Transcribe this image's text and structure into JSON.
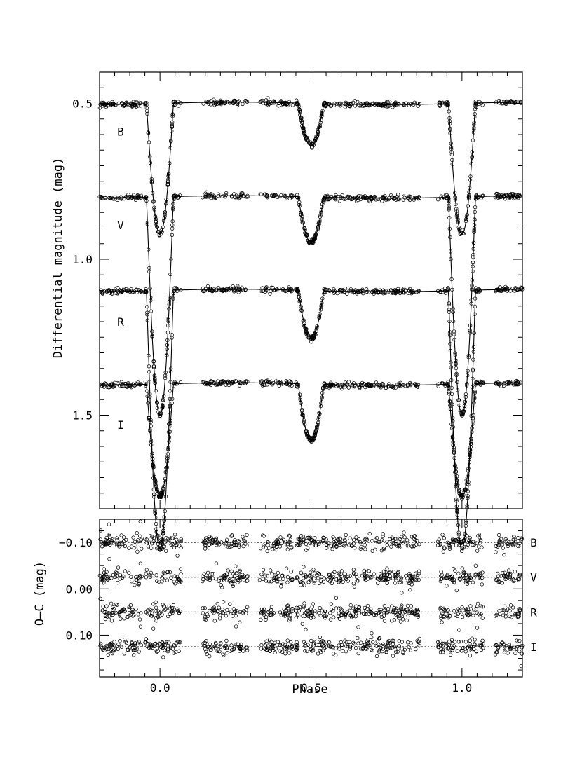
{
  "chart_data": [
    {
      "type": "scatter",
      "panel": "light-curve",
      "ylabel": "Differential magnitude (mag)",
      "ylim": [
        1.8,
        0.4
      ],
      "y_inverted": true,
      "xlim": [
        -0.2,
        1.2
      ],
      "yticks": [
        {
          "v": 0.5,
          "t": "0.5"
        },
        {
          "v": 1.0,
          "t": "1.0"
        },
        {
          "v": 1.5,
          "t": "1.5"
        }
      ],
      "x_minor_step": 0.05,
      "y_minor_step": 0.05,
      "eclipse": {
        "primary_phase": 0.0,
        "secondary_phase": 0.5,
        "half_width_primary": 0.045,
        "half_width_secondary": 0.043
      },
      "series": [
        {
          "name": "B",
          "label_y": 0.59,
          "baseline": 0.5,
          "primary_depth": 0.42,
          "secondary_depth": 0.135,
          "scatter": 0.004
        },
        {
          "name": "V",
          "label_y": 0.89,
          "baseline": 0.8,
          "primary_depth": 0.7,
          "secondary_depth": 0.145,
          "scatter": 0.004
        },
        {
          "name": "R",
          "label_y": 1.2,
          "baseline": 1.1,
          "primary_depth": 0.83,
          "secondary_depth": 0.155,
          "scatter": 0.004
        },
        {
          "name": "I",
          "label_y": 1.53,
          "baseline": 1.4,
          "primary_depth": 0.36,
          "secondary_depth": 0.18,
          "scatter": 0.004
        }
      ]
    },
    {
      "type": "scatter",
      "panel": "residuals",
      "ylabel": "O–C (mag)",
      "xlabel": "Phase",
      "ylim": [
        0.19,
        -0.15
      ],
      "y_inverted": true,
      "xlim": [
        -0.2,
        1.2
      ],
      "yticks": [
        {
          "v": -0.1,
          "t": "−0.10"
        },
        {
          "v": 0.0,
          "t": "0.00"
        },
        {
          "v": 0.1,
          "t": "0.10"
        }
      ],
      "xticks": [
        {
          "v": 0.0,
          "t": "0.0"
        },
        {
          "v": 0.5,
          "t": "0.5"
        },
        {
          "v": 1.0,
          "t": "1.0"
        }
      ],
      "series": [
        {
          "name": "B",
          "offset": -0.1,
          "scatter": 0.008
        },
        {
          "name": "V",
          "offset": -0.025,
          "scatter": 0.008
        },
        {
          "name": "R",
          "offset": 0.05,
          "scatter": 0.008
        },
        {
          "name": "I",
          "offset": 0.125,
          "scatter": 0.008
        }
      ]
    }
  ]
}
